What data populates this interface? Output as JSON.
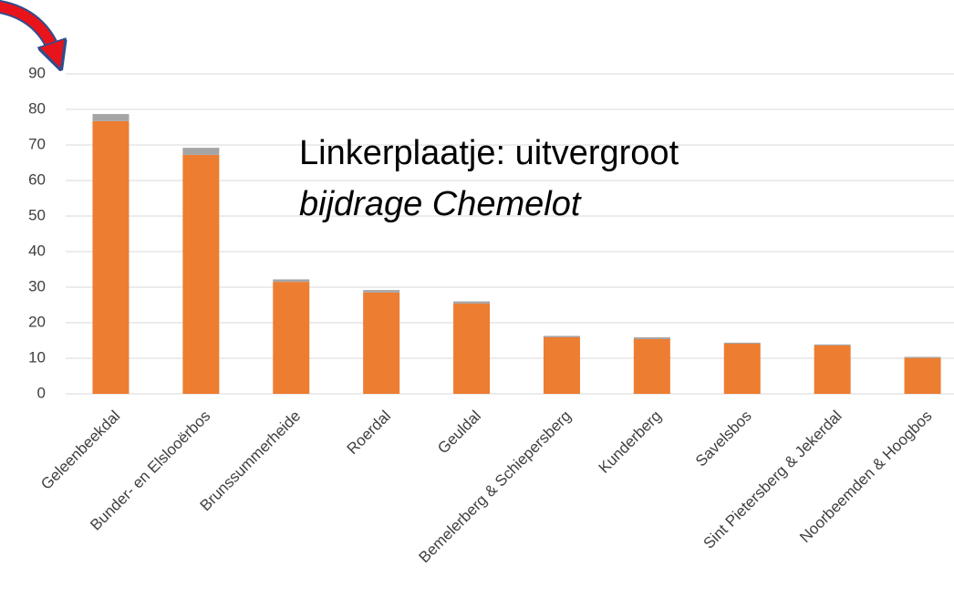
{
  "chart_data": {
    "type": "stacked_bar",
    "annotations": [
      "Linkerplaatje: uitvergroot",
      "bijdrage Chemelot"
    ],
    "categories": [
      "Geleenbeekdal",
      "Bunder- en Elslooërbos",
      "Brunssummerheide",
      "Roerdal",
      "Geuldal",
      "Bemelerberg & Schiepersberg",
      "Kunderberg",
      "Savelsbos",
      "Sint Pietersberg & Jekerdal",
      "Noorbeemden & Hoogbos"
    ],
    "series": [
      {
        "color": "#ed7d31",
        "values": [
          76.7,
          67.2,
          31.5,
          28.5,
          25.4,
          15.9,
          15.4,
          14.1,
          13.6,
          10.1
        ]
      },
      {
        "color": "#a5a5a5",
        "values": [
          2,
          2,
          0.7,
          0.7,
          0.6,
          0.4,
          0.5,
          0.3,
          0.3,
          0.3
        ]
      }
    ],
    "ylim": [
      0,
      90
    ],
    "yticks": [
      0,
      10,
      20,
      30,
      40,
      50,
      60,
      70,
      80,
      90
    ],
    "grid": true
  }
}
